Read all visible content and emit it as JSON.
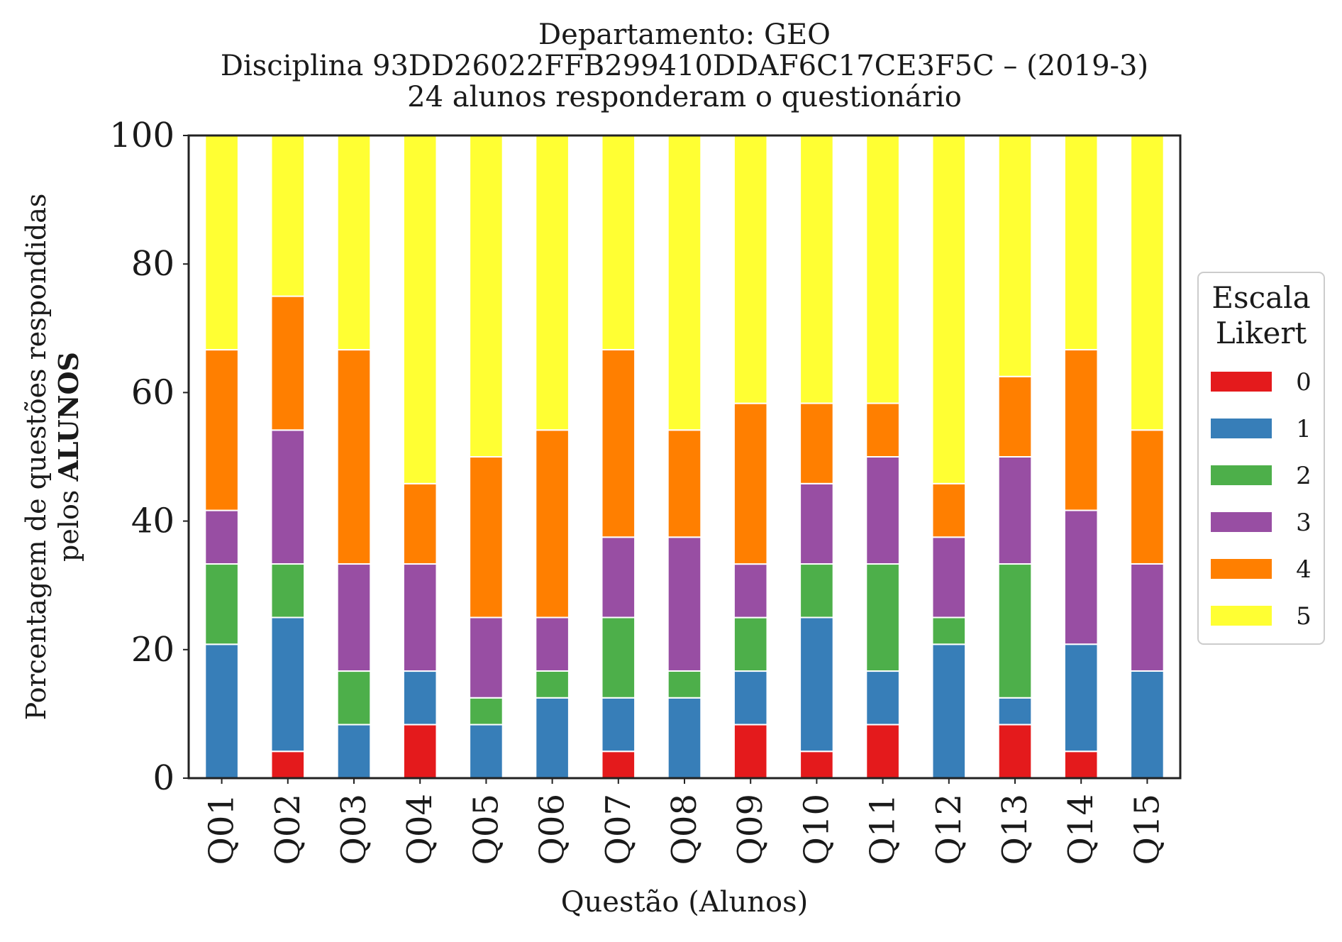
{
  "chart_data": {
    "type": "bar",
    "stacked": true,
    "title_lines": [
      "Departamento: GEO",
      "Disciplina 93DD26022FFB299410DDAF6C17CE3F5C – (2019-3)",
      "24 alunos responderam o questionário"
    ],
    "xlabel": "Questão (Alunos)",
    "ylabel_line1": "Porcentagem de questões respondidas",
    "ylabel_line2_prefix": "pelos ",
    "ylabel_line2_bold": "ALUNOS",
    "ylim": [
      0,
      100
    ],
    "yticks": [
      "0",
      "20",
      "40",
      "60",
      "80",
      "100"
    ],
    "categories": [
      "Q01",
      "Q02",
      "Q03",
      "Q04",
      "Q05",
      "Q06",
      "Q07",
      "Q08",
      "Q09",
      "Q10",
      "Q11",
      "Q12",
      "Q13",
      "Q14",
      "Q15"
    ],
    "legend": {
      "title_lines": [
        "Escala",
        "Likert"
      ],
      "position": "center-right"
    },
    "grid": false,
    "series": [
      {
        "name": "0",
        "color": "#e41a1c",
        "values": [
          0,
          4.17,
          0,
          8.33,
          0,
          0,
          4.17,
          0,
          8.33,
          4.17,
          8.33,
          0,
          8.33,
          4.17,
          0
        ]
      },
      {
        "name": "1",
        "color": "#377eb8",
        "values": [
          20.83,
          20.83,
          8.33,
          8.33,
          8.33,
          12.5,
          8.33,
          12.5,
          8.33,
          20.83,
          8.33,
          20.83,
          4.17,
          16.67,
          16.67
        ]
      },
      {
        "name": "2",
        "color": "#4daf4a",
        "values": [
          12.5,
          8.33,
          8.33,
          0,
          4.17,
          4.17,
          12.5,
          4.17,
          8.33,
          8.33,
          16.67,
          4.17,
          20.83,
          0,
          0
        ]
      },
      {
        "name": "3",
        "color": "#984ea3",
        "values": [
          8.33,
          20.83,
          16.67,
          16.67,
          12.5,
          8.33,
          12.5,
          20.83,
          8.33,
          12.5,
          16.67,
          12.5,
          16.67,
          20.83,
          16.67
        ]
      },
      {
        "name": "4",
        "color": "#ff7f00",
        "values": [
          25,
          20.83,
          33.33,
          12.5,
          25,
          29.17,
          29.17,
          16.67,
          25,
          12.5,
          8.33,
          8.33,
          12.5,
          25,
          20.83
        ]
      },
      {
        "name": "5",
        "color": "#ffff33",
        "values": [
          33.33,
          25,
          33.33,
          54.17,
          50,
          45.83,
          33.33,
          45.83,
          41.67,
          41.67,
          41.67,
          54.17,
          37.5,
          33.33,
          45.83
        ]
      }
    ]
  }
}
